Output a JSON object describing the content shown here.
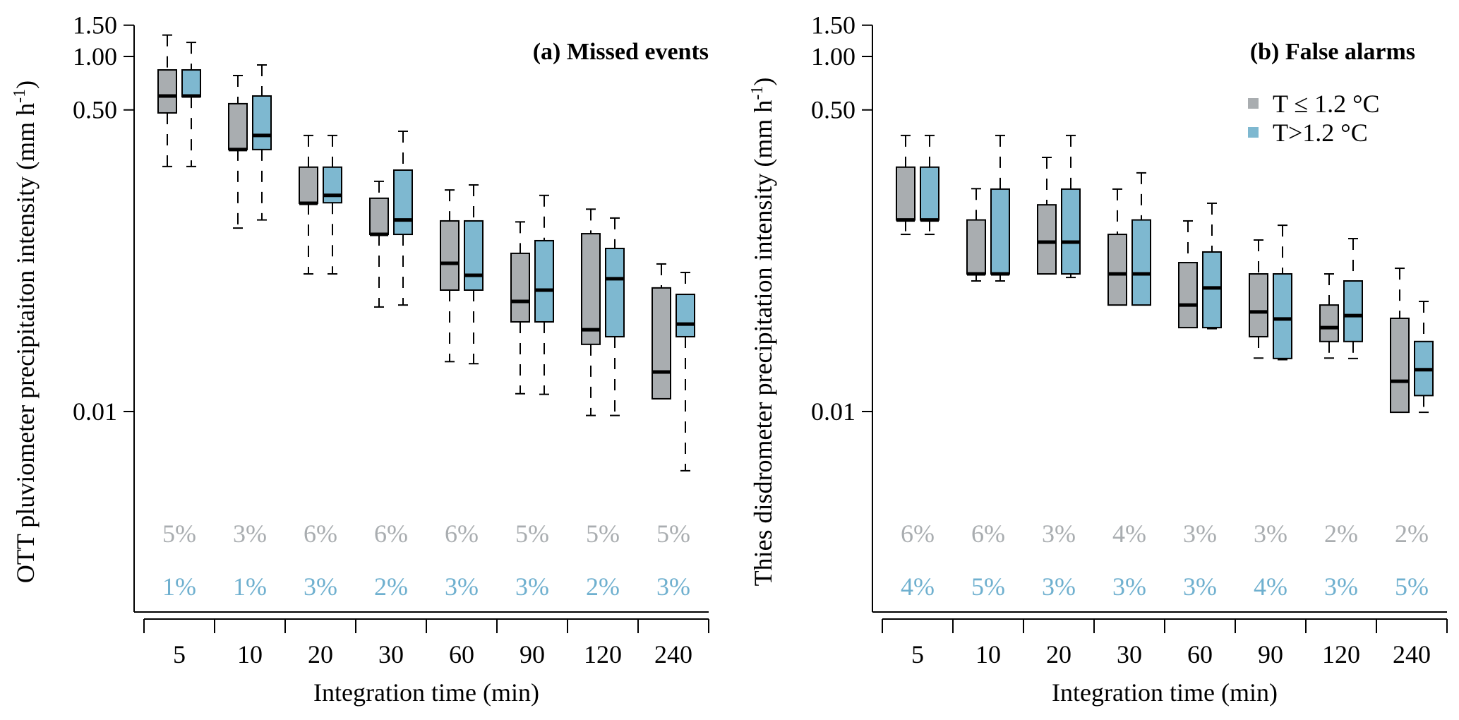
{
  "chart_data": [
    {
      "type": "boxplot",
      "panel": "a",
      "title": "(a) Missed events",
      "xlabel": "Integration time (min)",
      "ylabel": "OTT pluviometer precipitaiton intensity (mm h",
      "ylabel_sup": "-1",
      "ylabel_close": ")",
      "yscale": "log",
      "ylim": [
        0.0018,
        1.6
      ],
      "yticks": [
        1.5,
        1.0,
        0.5,
        0.01
      ],
      "ytick_labels": [
        "1.50",
        "1.00",
        "0.50",
        "0.01"
      ],
      "categories": [
        "5",
        "10",
        "20",
        "30",
        "60",
        "90",
        "120",
        "240"
      ],
      "grid": false,
      "series": [
        {
          "name": "T ≤ 1.2 °C",
          "color": "#A9ADB0",
          "boxes": [
            {
              "whisker_low": 0.24,
              "q1": 0.481,
              "median": 0.599,
              "q3": 0.84,
              "whisker_high": 1.32
            },
            {
              "whisker_low": 0.108,
              "q1": 0.299,
              "median": 0.299,
              "q3": 0.542,
              "whisker_high": 0.781
            },
            {
              "whisker_low": 0.0596,
              "q1": 0.149,
              "median": 0.149,
              "q3": 0.238,
              "whisker_high": 0.359
            },
            {
              "whisker_low": 0.0388,
              "q1": 0.0995,
              "median": 0.0995,
              "q3": 0.159,
              "whisker_high": 0.198
            },
            {
              "whisker_low": 0.0191,
              "q1": 0.0483,
              "median": 0.0684,
              "q3": 0.1185,
              "whisker_high": 0.177
            },
            {
              "whisker_low": 0.0126,
              "q1": 0.032,
              "median": 0.0417,
              "q3": 0.0778,
              "whisker_high": 0.117
            },
            {
              "whisker_low": 0.0095,
              "q1": 0.0239,
              "median": 0.0289,
              "q3": 0.1004,
              "whisker_high": 0.138
            },
            {
              "whisker_low": 0.0118,
              "q1": 0.0118,
              "median": 0.0167,
              "q3": 0.0497,
              "whisker_high": 0.0678
            }
          ],
          "percent_labels": [
            "5%",
            "3%",
            "6%",
            "6%",
            "6%",
            "5%",
            "5%",
            "5%"
          ]
        },
        {
          "name": "T>1.2 °C",
          "color": "#7EB8D0",
          "boxes": [
            {
              "whisker_low": 0.24,
              "q1": 0.593,
              "median": 0.599,
              "q3": 0.84,
              "whisker_high": 1.2
            },
            {
              "whisker_low": 0.12,
              "q1": 0.299,
              "median": 0.359,
              "q3": 0.599,
              "whisker_high": 0.896
            },
            {
              "whisker_low": 0.0596,
              "q1": 0.15,
              "median": 0.165,
              "q3": 0.238,
              "whisker_high": 0.359
            },
            {
              "whisker_low": 0.0398,
              "q1": 0.0995,
              "median": 0.12,
              "q3": 0.229,
              "whisker_high": 0.379
            },
            {
              "whisker_low": 0.0186,
              "q1": 0.0483,
              "median": 0.0585,
              "q3": 0.1185,
              "whisker_high": 0.189
            },
            {
              "whisker_low": 0.0125,
              "q1": 0.032,
              "median": 0.0483,
              "q3": 0.0917,
              "whisker_high": 0.165
            },
            {
              "whisker_low": 0.0095,
              "q1": 0.0264,
              "median": 0.056,
              "q3": 0.0829,
              "whisker_high": 0.123
            },
            {
              "whisker_low": 0.00464,
              "q1": 0.0264,
              "median": 0.0311,
              "q3": 0.0457,
              "whisker_high": 0.0607
            }
          ],
          "percent_labels": [
            "1%",
            "1%",
            "3%",
            "2%",
            "3%",
            "3%",
            "2%",
            "3%"
          ]
        }
      ]
    },
    {
      "type": "boxplot",
      "panel": "b",
      "title": "(b) False alarms",
      "xlabel": "Integration time (min)",
      "ylabel": "Thies disdrometer precipitation intensity (mm h",
      "ylabel_sup": "-1",
      "ylabel_close": ")",
      "yscale": "log",
      "ylim": [
        0.0018,
        1.6
      ],
      "yticks": [
        1.5,
        1.0,
        0.5,
        0.01
      ],
      "ytick_labels": [
        "1.50",
        "1.00",
        "0.50",
        "0.01"
      ],
      "categories": [
        "5",
        "10",
        "20",
        "30",
        "60",
        "90",
        "120",
        "240"
      ],
      "grid": false,
      "legend": {
        "position": "top-right",
        "entries": [
          {
            "label": "T ≤  1.2 °C",
            "color": "#A9ADB0"
          },
          {
            "label": "T>1.2   °C",
            "color": "#7EB8D0"
          }
        ]
      },
      "series": [
        {
          "name": "T ≤ 1.2 °C",
          "color": "#A9ADB0",
          "boxes": [
            {
              "whisker_low": 0.0995,
              "q1": 0.12,
              "median": 0.12,
              "q3": 0.238,
              "whisker_high": 0.359
            },
            {
              "whisker_low": 0.0544,
              "q1": 0.0596,
              "median": 0.0596,
              "q3": 0.12,
              "whisker_high": 0.18
            },
            {
              "whisker_low": 0.0596,
              "q1": 0.0596,
              "median": 0.09,
              "q3": 0.146,
              "whisker_high": 0.27
            },
            {
              "whisker_low": 0.0398,
              "q1": 0.0398,
              "median": 0.0596,
              "q3": 0.0995,
              "whisker_high": 0.179
            },
            {
              "whisker_low": 0.0297,
              "q1": 0.0297,
              "median": 0.0398,
              "q3": 0.069,
              "whisker_high": 0.1185
            },
            {
              "whisker_low": 0.02,
              "q1": 0.0264,
              "median": 0.0364,
              "q3": 0.0596,
              "whisker_high": 0.0925
            },
            {
              "whisker_low": 0.02,
              "q1": 0.0248,
              "median": 0.0297,
              "q3": 0.0398,
              "whisker_high": 0.0596
            },
            {
              "whisker_low": 0.0099,
              "q1": 0.0099,
              "median": 0.0148,
              "q3": 0.0335,
              "whisker_high": 0.0641
            }
          ],
          "percent_labels": [
            "6%",
            "6%",
            "3%",
            "4%",
            "3%",
            "3%",
            "2%",
            "2%"
          ]
        },
        {
          "name": "T>1.2 °C",
          "color": "#7EB8D0",
          "boxes": [
            {
              "whisker_low": 0.0995,
              "q1": 0.12,
              "median": 0.12,
              "q3": 0.238,
              "whisker_high": 0.359
            },
            {
              "whisker_low": 0.0544,
              "q1": 0.0596,
              "median": 0.0596,
              "q3": 0.179,
              "whisker_high": 0.359
            },
            {
              "whisker_low": 0.0569,
              "q1": 0.0596,
              "median": 0.09,
              "q3": 0.179,
              "whisker_high": 0.359
            },
            {
              "whisker_low": 0.0398,
              "q1": 0.0398,
              "median": 0.0596,
              "q3": 0.12,
              "whisker_high": 0.221
            },
            {
              "whisker_low": 0.0293,
              "q1": 0.0297,
              "median": 0.0497,
              "q3": 0.0792,
              "whisker_high": 0.149
            },
            {
              "whisker_low": 0.0196,
              "q1": 0.0199,
              "median": 0.0332,
              "q3": 0.0596,
              "whisker_high": 0.112
            },
            {
              "whisker_low": 0.0199,
              "q1": 0.0248,
              "median": 0.0347,
              "q3": 0.0544,
              "whisker_high": 0.0942
            },
            {
              "whisker_low": 0.0099,
              "q1": 0.0123,
              "median": 0.0172,
              "q3": 0.0248,
              "whisker_high": 0.0417
            }
          ],
          "percent_labels": [
            "4%",
            "5%",
            "3%",
            "3%",
            "3%",
            "4%",
            "3%",
            "5%"
          ]
        }
      ]
    }
  ]
}
